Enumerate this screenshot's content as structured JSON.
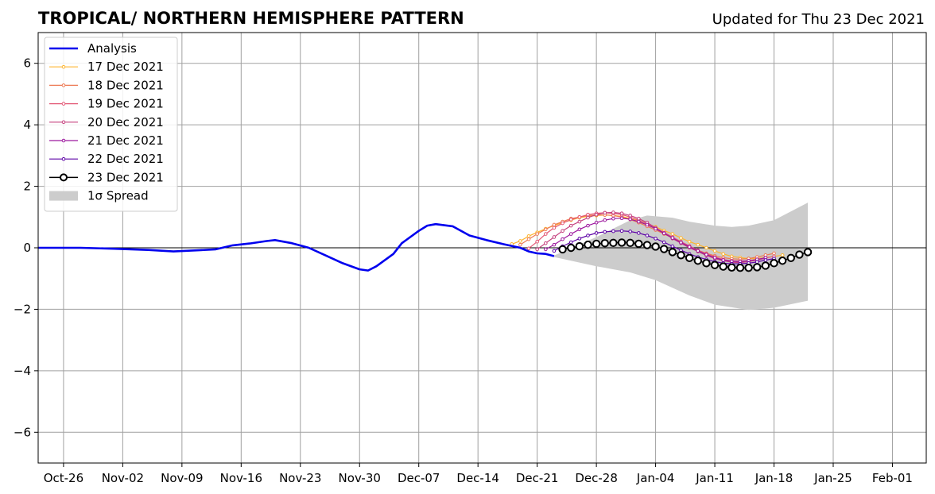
{
  "chart_data": {
    "type": "line",
    "title": "TROPICAL/ NORTHERN HEMISPHERE PATTERN",
    "subtitle": "Updated for Thu 23 Dec 2021",
    "x_axis": {
      "type": "date",
      "range": [
        "2021-10-23",
        "2022-02-05"
      ],
      "tick_dates": [
        "2021-10-26",
        "2021-11-02",
        "2021-11-09",
        "2021-11-16",
        "2021-11-23",
        "2021-11-30",
        "2021-12-07",
        "2021-12-14",
        "2021-12-21",
        "2021-12-28",
        "2022-01-04",
        "2022-01-11",
        "2022-01-18",
        "2022-01-25",
        "2022-02-01"
      ],
      "tick_labels": [
        "Oct-26",
        "Nov-02",
        "Nov-09",
        "Nov-16",
        "Nov-23",
        "Nov-30",
        "Dec-07",
        "Dec-14",
        "Dec-21",
        "Dec-28",
        "Jan-04",
        "Jan-11",
        "Jan-18",
        "Jan-25",
        "Feb-01"
      ]
    },
    "y_axis": {
      "range": [
        -7,
        7
      ],
      "ticks": [
        -6,
        -4,
        -2,
        0,
        2,
        4,
        6
      ],
      "tick_labels": [
        "−6",
        "−4",
        "−2",
        "0",
        "2",
        "4",
        "6"
      ]
    },
    "grid": true,
    "legend_position": "top-left",
    "analysis": {
      "name": "Analysis",
      "color": "#0000ee",
      "points": [
        [
          "2021-10-23",
          0.0
        ],
        [
          "2021-10-28",
          0.0
        ],
        [
          "2021-11-01",
          -0.03
        ],
        [
          "2021-11-05",
          -0.07
        ],
        [
          "2021-11-08",
          -0.12
        ],
        [
          "2021-11-11",
          -0.08
        ],
        [
          "2021-11-13",
          -0.05
        ],
        [
          "2021-11-15",
          0.08
        ],
        [
          "2021-11-17",
          0.14
        ],
        [
          "2021-11-19",
          0.22
        ],
        [
          "2021-11-20",
          0.25
        ],
        [
          "2021-11-22",
          0.15
        ],
        [
          "2021-11-24",
          0.0
        ],
        [
          "2021-11-26",
          -0.25
        ],
        [
          "2021-11-28",
          -0.5
        ],
        [
          "2021-11-30",
          -0.7
        ],
        [
          "2021-12-01",
          -0.74
        ],
        [
          "2021-12-02",
          -0.6
        ],
        [
          "2021-12-04",
          -0.2
        ],
        [
          "2021-12-05",
          0.15
        ],
        [
          "2021-12-07",
          0.55
        ],
        [
          "2021-12-08",
          0.72
        ],
        [
          "2021-12-09",
          0.77
        ],
        [
          "2021-12-11",
          0.7
        ],
        [
          "2021-12-13",
          0.4
        ],
        [
          "2021-12-15",
          0.25
        ],
        [
          "2021-12-17",
          0.12
        ],
        [
          "2021-12-19",
          0.0
        ],
        [
          "2021-12-20",
          -0.12
        ],
        [
          "2021-12-21",
          -0.18
        ],
        [
          "2021-12-22",
          -0.2
        ],
        [
          "2021-12-23",
          -0.27
        ]
      ]
    },
    "series": [
      {
        "name": "17 Dec 2021",
        "color": "#fdb42f",
        "start": "2021-12-18",
        "values": [
          0.12,
          0.22,
          0.38,
          0.5,
          0.62,
          0.72,
          0.82,
          0.9,
          0.98,
          1.02,
          1.05,
          1.07,
          1.05,
          1.02,
          0.95,
          0.88,
          0.78,
          0.68,
          0.56,
          0.45,
          0.32,
          0.2,
          0.1,
          0.0,
          -0.1,
          -0.2,
          -0.28,
          -0.32,
          -0.35,
          -0.35,
          -0.32,
          -0.28,
          -0.24
        ]
      },
      {
        "name": "18 Dec 2021",
        "color": "#ed7953",
        "start": "2021-12-19",
        "values": [
          0.1,
          0.28,
          0.45,
          0.6,
          0.75,
          0.85,
          0.95,
          1.0,
          1.05,
          1.07,
          1.07,
          1.05,
          1.0,
          0.92,
          0.82,
          0.7,
          0.58,
          0.45,
          0.32,
          0.18,
          0.05,
          -0.08,
          -0.18,
          -0.26,
          -0.32,
          -0.36,
          -0.37,
          -0.35,
          -0.3,
          -0.24,
          -0.18
        ]
      },
      {
        "name": "19 Dec 2021",
        "color": "#e35876",
        "start": "2021-12-20",
        "values": [
          -0.02,
          0.2,
          0.45,
          0.65,
          0.8,
          0.92,
          1.0,
          1.08,
          1.12,
          1.14,
          1.12,
          1.08,
          1.0,
          0.9,
          0.78,
          0.64,
          0.5,
          0.35,
          0.2,
          0.06,
          -0.08,
          -0.2,
          -0.3,
          -0.38,
          -0.42,
          -0.43,
          -0.42,
          -0.38,
          -0.33,
          -0.28
        ]
      },
      {
        "name": "20 Dec 2021",
        "color": "#c5407e",
        "start": "2021-12-21",
        "values": [
          -0.05,
          0.15,
          0.35,
          0.55,
          0.72,
          0.85,
          0.98,
          1.08,
          1.14,
          1.15,
          1.12,
          1.05,
          0.95,
          0.82,
          0.65,
          0.48,
          0.3,
          0.15,
          0.0,
          -0.12,
          -0.25,
          -0.35,
          -0.42,
          -0.47,
          -0.48,
          -0.45,
          -0.4,
          -0.34
        ]
      },
      {
        "name": "21 Dec 2021",
        "color": "#9c179e",
        "start": "2021-12-22",
        "values": [
          -0.05,
          0.1,
          0.28,
          0.45,
          0.6,
          0.72,
          0.82,
          0.9,
          0.95,
          0.96,
          0.93,
          0.85,
          0.75,
          0.62,
          0.47,
          0.32,
          0.17,
          0.03,
          -0.1,
          -0.22,
          -0.32,
          -0.4,
          -0.44,
          -0.45,
          -0.42,
          -0.38,
          -0.32
        ]
      },
      {
        "name": "22 Dec 2021",
        "color": "#5c01a6",
        "start": "2021-12-23",
        "values": [
          -0.1,
          0.05,
          0.18,
          0.3,
          0.4,
          0.48,
          0.52,
          0.54,
          0.55,
          0.53,
          0.48,
          0.4,
          0.3,
          0.18,
          0.05,
          -0.08,
          -0.2,
          -0.3,
          -0.38,
          -0.45,
          -0.5,
          -0.52,
          -0.52,
          -0.5,
          -0.46,
          -0.4,
          -0.35
        ]
      },
      {
        "name": "23 Dec 2021",
        "color": "#000000",
        "marker": "open-circle",
        "start": "2021-12-24",
        "values": [
          -0.05,
          0.0,
          0.05,
          0.1,
          0.13,
          0.15,
          0.16,
          0.17,
          0.16,
          0.13,
          0.09,
          0.04,
          -0.04,
          -0.14,
          -0.24,
          -0.33,
          -0.42,
          -0.5,
          -0.56,
          -0.61,
          -0.64,
          -0.65,
          -0.65,
          -0.63,
          -0.58,
          -0.5,
          -0.42,
          -0.33,
          -0.22,
          -0.14
        ]
      }
    ],
    "spread": {
      "name": "1σ Spread",
      "color": "#cccccc",
      "upper": [
        [
          "2021-12-23",
          -0.25
        ],
        [
          "2021-12-28",
          0.35
        ],
        [
          "2022-01-01",
          0.9
        ],
        [
          "2022-01-03",
          1.05
        ],
        [
          "2022-01-06",
          0.98
        ],
        [
          "2022-01-08",
          0.85
        ],
        [
          "2022-01-11",
          0.72
        ],
        [
          "2022-01-13",
          0.68
        ],
        [
          "2022-01-15",
          0.72
        ],
        [
          "2022-01-18",
          0.9
        ],
        [
          "2022-01-22",
          1.47
        ]
      ],
      "lower": [
        [
          "2021-12-23",
          -0.3
        ],
        [
          "2021-12-28",
          -0.6
        ],
        [
          "2022-01-01",
          -0.8
        ],
        [
          "2022-01-04",
          -1.05
        ],
        [
          "2022-01-08",
          -1.55
        ],
        [
          "2022-01-11",
          -1.85
        ],
        [
          "2022-01-15",
          -2.02
        ],
        [
          "2022-01-18",
          -1.95
        ],
        [
          "2022-01-22",
          -1.72
        ]
      ]
    }
  }
}
